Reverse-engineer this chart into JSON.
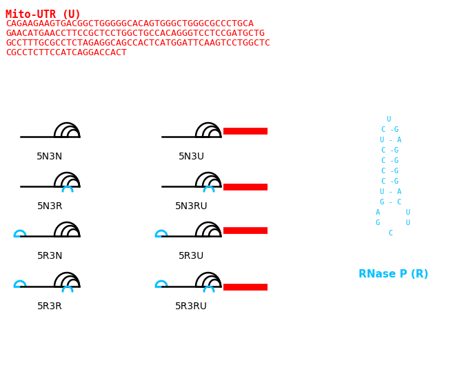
{
  "title_text": "Mito-UTR (U)",
  "sequence_lines": [
    "CAGAAGAAGTGACGGCTGGGGGCACAGTGGGCTGGGCGCCCTGCA",
    "GAACATGAACCTTCCGCTCCTGGCTGCCACAGGGTCCTCCGATGCTG",
    "GCCTTTGCGCCTCTAGAGGCAGCCACTCATGGATTCAAGTCCTGGCTC",
    "CGCCTCTTCCATCAGGACCACT"
  ],
  "red": "#FF0000",
  "cyan": "#00BFFF",
  "black": "#000000",
  "white": "#FFFFFF",
  "rnase_structure": [
    [
      "U",
      0.0
    ],
    [
      "C-G",
      0.5
    ],
    [
      "U-A",
      0.5
    ],
    [
      "C-G",
      0.5
    ],
    [
      "C-G",
      0.5
    ],
    [
      "C-G",
      0.5
    ],
    [
      "C-G",
      0.5
    ],
    [
      "U-A",
      0.5
    ],
    [
      "G-C",
      0.5
    ],
    [
      "A  U",
      1.5
    ],
    [
      "G  U",
      1.5
    ],
    [
      " C",
      2.5
    ]
  ],
  "rnase_label": "RNase P (R)",
  "bg_color": "#FFFFFF",
  "title_fontsize": 11,
  "seq_fontsize": 9.5,
  "label_fontsize": 10
}
